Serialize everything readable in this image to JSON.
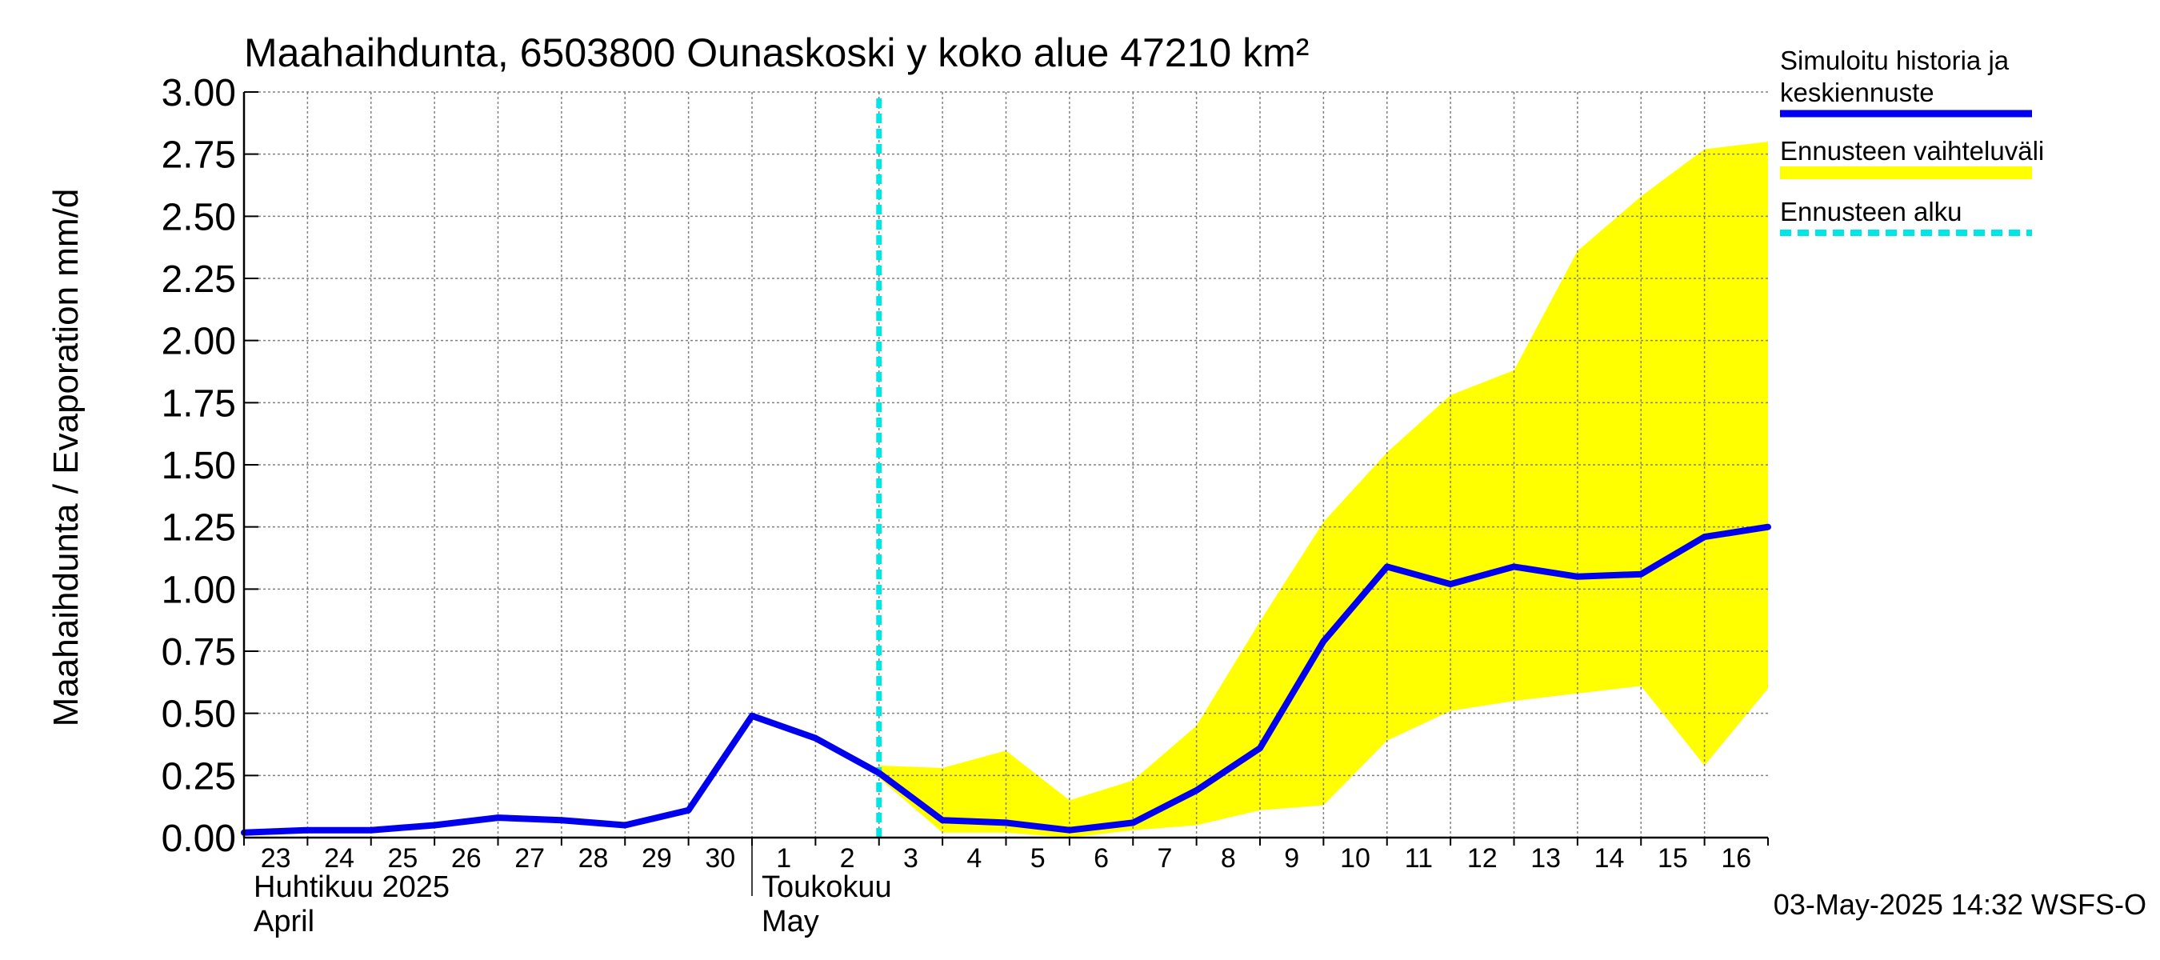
{
  "chart_data": {
    "type": "line",
    "title": "Maahaihdunta, 6503800 Ounaskoski y koko alue 47210 km²",
    "ylabel": "Maahaihdunta / Evaporation   mm/d",
    "ylim": [
      0,
      3
    ],
    "yticks": [
      "0.00",
      "0.25",
      "0.50",
      "0.75",
      "1.00",
      "1.25",
      "1.50",
      "1.75",
      "2.00",
      "2.25",
      "2.50",
      "2.75",
      "3.00"
    ],
    "grid": true,
    "x_day_labels": [
      "23",
      "24",
      "25",
      "26",
      "27",
      "28",
      "29",
      "30",
      "1",
      "2",
      "3",
      "4",
      "5",
      "6",
      "7",
      "8",
      "9",
      "10",
      "11",
      "12",
      "13",
      "14",
      "15",
      "16"
    ],
    "x_month_labels": [
      {
        "line1": "Huhtikuu  2025",
        "line2": "April",
        "start_index": 0
      },
      {
        "line1": "Toukokuu",
        "line2": "May",
        "start_index": 8
      }
    ],
    "x_range": [
      "2025-04-23",
      "2025-05-17"
    ],
    "forecast_start": "2025-05-03",
    "legend_position": "right",
    "legend": [
      {
        "label": "Simuloitu historia ja keskiennuste",
        "color": "#0000ee",
        "style": "solid"
      },
      {
        "label": "Ennusteen vaihteluväli",
        "color": "#ffff00",
        "style": "band"
      },
      {
        "label": "Ennusteen alku",
        "color": "#00e5e5",
        "style": "dashed"
      }
    ],
    "series": [
      {
        "name": "Simuloitu historia ja keskiennuste",
        "color": "#0000ee",
        "points": [
          [
            "2025-04-23",
            0.02
          ],
          [
            "2025-04-24",
            0.03
          ],
          [
            "2025-04-25",
            0.03
          ],
          [
            "2025-04-26",
            0.05
          ],
          [
            "2025-04-27",
            0.08
          ],
          [
            "2025-04-28",
            0.07
          ],
          [
            "2025-04-29",
            0.05
          ],
          [
            "2025-04-30",
            0.11
          ],
          [
            "2025-05-01",
            0.49
          ],
          [
            "2025-05-02",
            0.4
          ],
          [
            "2025-05-03",
            0.26
          ],
          [
            "2025-05-04",
            0.07
          ],
          [
            "2025-05-05",
            0.06
          ],
          [
            "2025-05-06",
            0.03
          ],
          [
            "2025-05-07",
            0.06
          ],
          [
            "2025-05-08",
            0.19
          ],
          [
            "2025-05-09",
            0.36
          ],
          [
            "2025-05-10",
            0.79
          ],
          [
            "2025-05-11",
            1.09
          ],
          [
            "2025-05-12",
            1.02
          ],
          [
            "2025-05-13",
            1.09
          ],
          [
            "2025-05-14",
            1.05
          ],
          [
            "2025-05-15",
            1.06
          ],
          [
            "2025-05-16",
            1.21
          ],
          [
            "2025-05-17",
            1.25
          ]
        ]
      },
      {
        "name": "Ennusteen vaihteluväli",
        "color": "#ffff00",
        "upper": [
          [
            "2025-05-03",
            0.29
          ],
          [
            "2025-05-04",
            0.28
          ],
          [
            "2025-05-05",
            0.35
          ],
          [
            "2025-05-06",
            0.15
          ],
          [
            "2025-05-07",
            0.23
          ],
          [
            "2025-05-08",
            0.45
          ],
          [
            "2025-05-09",
            0.87
          ],
          [
            "2025-05-10",
            1.27
          ],
          [
            "2025-05-11",
            1.55
          ],
          [
            "2025-05-12",
            1.78
          ],
          [
            "2025-05-13",
            1.88
          ],
          [
            "2025-05-14",
            2.36
          ],
          [
            "2025-05-15",
            2.58
          ],
          [
            "2025-05-16",
            2.77
          ],
          [
            "2025-05-17",
            2.8
          ]
        ],
        "lower": [
          [
            "2025-05-03",
            0.24
          ],
          [
            "2025-05-04",
            0.02
          ],
          [
            "2025-05-05",
            0.02
          ],
          [
            "2025-05-06",
            0.0
          ],
          [
            "2025-05-07",
            0.03
          ],
          [
            "2025-05-08",
            0.05
          ],
          [
            "2025-05-09",
            0.11
          ],
          [
            "2025-05-10",
            0.13
          ],
          [
            "2025-05-11",
            0.39
          ],
          [
            "2025-05-12",
            0.51
          ],
          [
            "2025-05-13",
            0.55
          ],
          [
            "2025-05-14",
            0.58
          ],
          [
            "2025-05-15",
            0.61
          ],
          [
            "2025-05-16",
            0.29
          ],
          [
            "2025-05-17",
            0.6
          ]
        ]
      }
    ]
  },
  "footer": {
    "timestamp": "03-May-2025 14:32 WSFS-O"
  }
}
